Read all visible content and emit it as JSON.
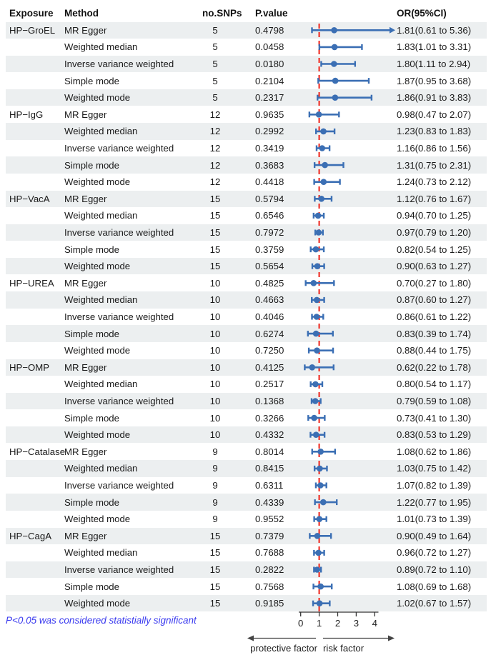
{
  "header": {
    "exposure": "Exposure",
    "method": "Method",
    "snps": "no.SNPs",
    "pvalue": "P.value",
    "or": "OR(95%CI)"
  },
  "footnote": "P<0.05 was considered statistially significant",
  "axis_labels": {
    "protective": "protective factor",
    "risk": "risk factor"
  },
  "colors": {
    "marker_blue": "#3B6FB4",
    "reference_red": "#EF342B",
    "stripe_gray": "#ECEFF0",
    "footnote_blue": "#3B3BEF",
    "axis_black": "#333333"
  },
  "chart_data": {
    "type": "forest",
    "title": "",
    "xlabel": "",
    "reference_line": 1,
    "axis_ticks": [
      0,
      1,
      2,
      3,
      4
    ],
    "axis_range": [
      0,
      4.95
    ],
    "legend_position": "none",
    "grid": false,
    "rows": [
      {
        "exposure": "HP−GroEL",
        "method": "MR Egger",
        "snps": "5",
        "pvalue": "0.4798",
        "or": 1.81,
        "low": 0.61,
        "high": 5.36,
        "or_label": "1.81(0.61 to 5.36)",
        "clipped": true
      },
      {
        "exposure": "",
        "method": "Weighted median",
        "snps": "5",
        "pvalue": "0.0458",
        "or": 1.83,
        "low": 1.01,
        "high": 3.31,
        "or_label": "1.83(1.01 to 3.31)",
        "clipped": false
      },
      {
        "exposure": "",
        "method": "Inverse variance weighted",
        "snps": "5",
        "pvalue": "0.0180",
        "or": 1.8,
        "low": 1.11,
        "high": 2.94,
        "or_label": "1.80(1.11 to 2.94)",
        "clipped": false
      },
      {
        "exposure": "",
        "method": "Simple mode",
        "snps": "5",
        "pvalue": "0.2104",
        "or": 1.87,
        "low": 0.95,
        "high": 3.68,
        "or_label": "1.87(0.95 to 3.68)",
        "clipped": false
      },
      {
        "exposure": "",
        "method": "Weighted mode",
        "snps": "5",
        "pvalue": "0.2317",
        "or": 1.86,
        "low": 0.91,
        "high": 3.83,
        "or_label": "1.86(0.91 to 3.83)",
        "clipped": false
      },
      {
        "exposure": "HP−IgG",
        "method": "MR Egger",
        "snps": "12",
        "pvalue": "0.9635",
        "or": 0.98,
        "low": 0.47,
        "high": 2.07,
        "or_label": "0.98(0.47 to 2.07)",
        "clipped": false
      },
      {
        "exposure": "",
        "method": "Weighted median",
        "snps": "12",
        "pvalue": "0.2992",
        "or": 1.23,
        "low": 0.83,
        "high": 1.83,
        "or_label": "1.23(0.83 to 1.83)",
        "clipped": false
      },
      {
        "exposure": "",
        "method": "Inverse variance weighted",
        "snps": "12",
        "pvalue": "0.3419",
        "or": 1.16,
        "low": 0.86,
        "high": 1.56,
        "or_label": "1.16(0.86 to 1.56)",
        "clipped": false
      },
      {
        "exposure": "",
        "method": "Simple mode",
        "snps": "12",
        "pvalue": "0.3683",
        "or": 1.31,
        "low": 0.75,
        "high": 2.31,
        "or_label": "1.31(0.75 to 2.31)",
        "clipped": false
      },
      {
        "exposure": "",
        "method": "Weighted mode",
        "snps": "12",
        "pvalue": "0.4418",
        "or": 1.24,
        "low": 0.73,
        "high": 2.12,
        "or_label": "1.24(0.73 to 2.12)",
        "clipped": false
      },
      {
        "exposure": "HP−VacA",
        "method": "MR Egger",
        "snps": "15",
        "pvalue": "0.5794",
        "or": 1.12,
        "low": 0.76,
        "high": 1.67,
        "or_label": "1.12(0.76 to 1.67)",
        "clipped": false
      },
      {
        "exposure": "",
        "method": "Weighted median",
        "snps": "15",
        "pvalue": "0.6546",
        "or": 0.94,
        "low": 0.7,
        "high": 1.25,
        "or_label": "0.94(0.70 to 1.25)",
        "clipped": false
      },
      {
        "exposure": "",
        "method": "Inverse variance weighted",
        "snps": "15",
        "pvalue": "0.7972",
        "or": 0.97,
        "low": 0.79,
        "high": 1.2,
        "or_label": "0.97(0.79 to 1.20)",
        "clipped": false
      },
      {
        "exposure": "",
        "method": "Simple mode",
        "snps": "15",
        "pvalue": "0.3759",
        "or": 0.82,
        "low": 0.54,
        "high": 1.25,
        "or_label": "0.82(0.54 to 1.25)",
        "clipped": false
      },
      {
        "exposure": "",
        "method": "Weighted mode",
        "snps": "15",
        "pvalue": "0.5654",
        "or": 0.9,
        "low": 0.63,
        "high": 1.27,
        "or_label": "0.90(0.63 to 1.27)",
        "clipped": false
      },
      {
        "exposure": "HP−UREA",
        "method": "MR Egger",
        "snps": "10",
        "pvalue": "0.4825",
        "or": 0.7,
        "low": 0.27,
        "high": 1.8,
        "or_label": "0.70(0.27 to 1.80)",
        "clipped": false
      },
      {
        "exposure": "",
        "method": "Weighted median",
        "snps": "10",
        "pvalue": "0.4663",
        "or": 0.87,
        "low": 0.6,
        "high": 1.27,
        "or_label": "0.87(0.60 to 1.27)",
        "clipped": false
      },
      {
        "exposure": "",
        "method": "Inverse variance weighted",
        "snps": "10",
        "pvalue": "0.4046",
        "or": 0.86,
        "low": 0.61,
        "high": 1.22,
        "or_label": "0.86(0.61 to 1.22)",
        "clipped": false
      },
      {
        "exposure": "",
        "method": "Simple mode",
        "snps": "10",
        "pvalue": "0.6274",
        "or": 0.83,
        "low": 0.39,
        "high": 1.74,
        "or_label": "0.83(0.39 to 1.74)",
        "clipped": false
      },
      {
        "exposure": "",
        "method": "Weighted mode",
        "snps": "10",
        "pvalue": "0.7250",
        "or": 0.88,
        "low": 0.44,
        "high": 1.75,
        "or_label": "0.88(0.44 to 1.75)",
        "clipped": false
      },
      {
        "exposure": "HP−OMP",
        "method": "MR Egger",
        "snps": "10",
        "pvalue": "0.4125",
        "or": 0.62,
        "low": 0.22,
        "high": 1.78,
        "or_label": "0.62(0.22 to 1.78)",
        "clipped": false
      },
      {
        "exposure": "",
        "method": "Weighted median",
        "snps": "10",
        "pvalue": "0.2517",
        "or": 0.8,
        "low": 0.54,
        "high": 1.17,
        "or_label": "0.80(0.54 to 1.17)",
        "clipped": false
      },
      {
        "exposure": "",
        "method": "Inverse variance weighted",
        "snps": "10",
        "pvalue": "0.1368",
        "or": 0.79,
        "low": 0.59,
        "high": 1.08,
        "or_label": "0.79(0.59 to 1.08)",
        "clipped": false
      },
      {
        "exposure": "",
        "method": "Simple mode",
        "snps": "10",
        "pvalue": "0.3266",
        "or": 0.73,
        "low": 0.41,
        "high": 1.3,
        "or_label": "0.73(0.41 to 1.30)",
        "clipped": false
      },
      {
        "exposure": "",
        "method": "Weighted mode",
        "snps": "10",
        "pvalue": "0.4332",
        "or": 0.83,
        "low": 0.53,
        "high": 1.29,
        "or_label": "0.83(0.53 to 1.29)",
        "clipped": false
      },
      {
        "exposure": "HP−Catalase",
        "method": "MR Egger",
        "snps": "9",
        "pvalue": "0.8014",
        "or": 1.08,
        "low": 0.62,
        "high": 1.86,
        "or_label": "1.08(0.62 to 1.86)",
        "clipped": false
      },
      {
        "exposure": "",
        "method": "Weighted median",
        "snps": "9",
        "pvalue": "0.8415",
        "or": 1.03,
        "low": 0.75,
        "high": 1.42,
        "or_label": "1.03(0.75 to 1.42)",
        "clipped": false
      },
      {
        "exposure": "",
        "method": "Inverse variance weighted",
        "snps": "9",
        "pvalue": "0.6311",
        "or": 1.07,
        "low": 0.82,
        "high": 1.39,
        "or_label": "1.07(0.82 to 1.39)",
        "clipped": false
      },
      {
        "exposure": "",
        "method": "Simple mode",
        "snps": "9",
        "pvalue": "0.4339",
        "or": 1.22,
        "low": 0.77,
        "high": 1.95,
        "or_label": "1.22(0.77 to 1.95)",
        "clipped": false
      },
      {
        "exposure": "",
        "method": "Weighted mode",
        "snps": "9",
        "pvalue": "0.9552",
        "or": 1.01,
        "low": 0.73,
        "high": 1.39,
        "or_label": "1.01(0.73 to 1.39)",
        "clipped": false
      },
      {
        "exposure": "HP−CagA",
        "method": "MR Egger",
        "snps": "15",
        "pvalue": "0.7379",
        "or": 0.9,
        "low": 0.49,
        "high": 1.64,
        "or_label": "0.90(0.49 to 1.64)",
        "clipped": false
      },
      {
        "exposure": "",
        "method": "Weighted median",
        "snps": "15",
        "pvalue": "0.7688",
        "or": 0.96,
        "low": 0.72,
        "high": 1.27,
        "or_label": "0.96(0.72 to 1.27)",
        "clipped": false
      },
      {
        "exposure": "",
        "method": "Inverse variance weighted",
        "snps": "15",
        "pvalue": "0.2822",
        "or": 0.89,
        "low": 0.72,
        "high": 1.1,
        "or_label": "0.89(0.72 to 1.10)",
        "clipped": false
      },
      {
        "exposure": "",
        "method": "Simple mode",
        "snps": "15",
        "pvalue": "0.7568",
        "or": 1.08,
        "low": 0.69,
        "high": 1.68,
        "or_label": "1.08(0.69 to 1.68)",
        "clipped": false
      },
      {
        "exposure": "",
        "method": "Weighted mode",
        "snps": "15",
        "pvalue": "0.9185",
        "or": 1.02,
        "low": 0.67,
        "high": 1.57,
        "or_label": "1.02(0.67 to 1.57)",
        "clipped": false
      }
    ]
  }
}
